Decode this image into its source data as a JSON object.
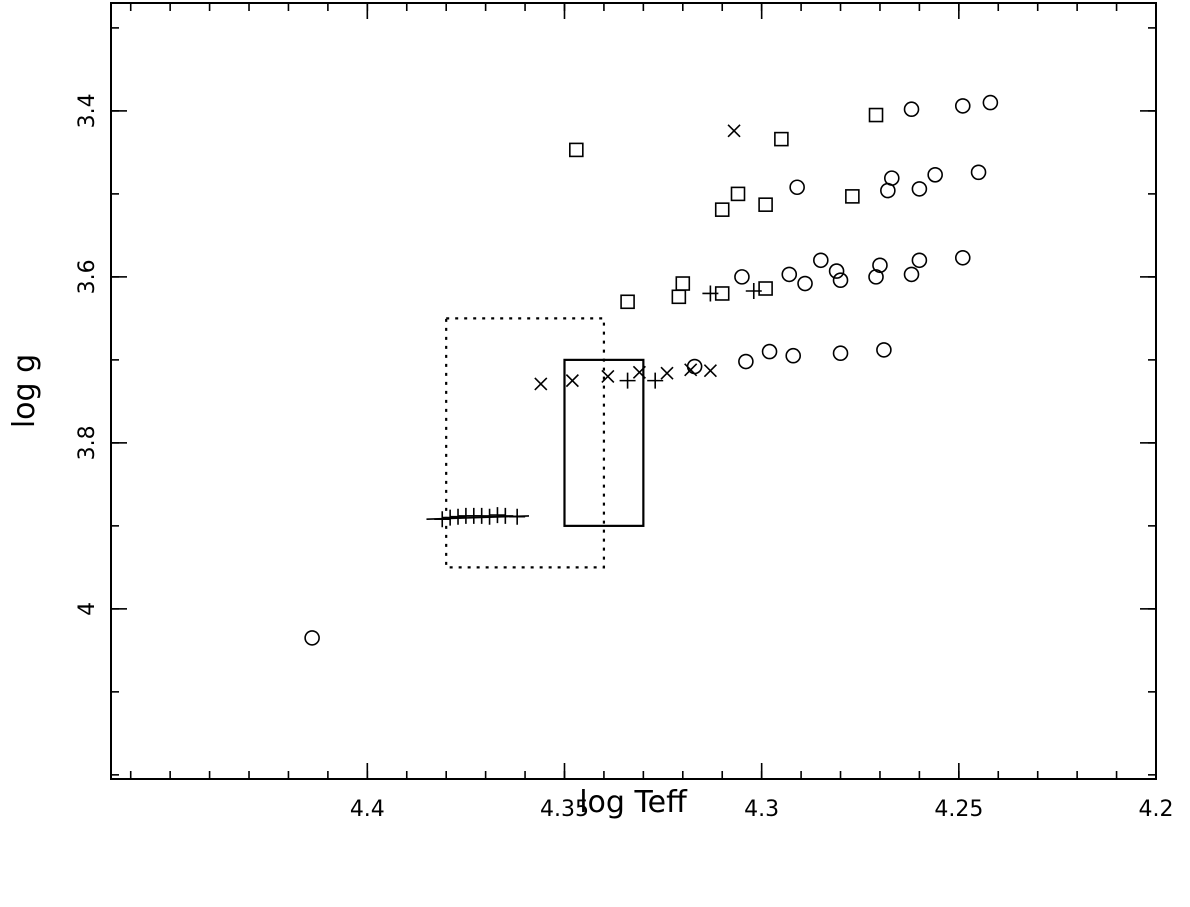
{
  "chart_data": {
    "type": "scatter",
    "xlabel": "log Teff",
    "ylabel": "log g",
    "xlim": [
      4.465,
      4.2
    ],
    "ylim": [
      4.205,
      3.27
    ],
    "x_reversed": true,
    "y_reversed": true,
    "grid": false,
    "x_ticks": [
      4.4,
      4.35,
      4.3,
      4.25,
      4.2
    ],
    "x_tick_labels": [
      "4.4",
      "4.35",
      "4.3",
      "4.25",
      "4.2"
    ],
    "x_minor_step": 0.01,
    "y_ticks": [
      3.4,
      3.6,
      3.8,
      4.0
    ],
    "y_tick_labels": [
      "3.4",
      "3.6",
      "3.8",
      "4"
    ],
    "y_minor_step": 0.1,
    "series": [
      {
        "marker": "circle",
        "points": [
          [
            4.414,
            4.035
          ],
          [
            4.317,
            3.708
          ],
          [
            4.305,
            3.6
          ],
          [
            4.304,
            3.702
          ],
          [
            4.298,
            3.69
          ],
          [
            4.293,
            3.597
          ],
          [
            4.292,
            3.695
          ],
          [
            4.291,
            3.492
          ],
          [
            4.289,
            3.608
          ],
          [
            4.285,
            3.58
          ],
          [
            4.281,
            3.593
          ],
          [
            4.28,
            3.604
          ],
          [
            4.28,
            3.692
          ],
          [
            4.271,
            3.6
          ],
          [
            4.27,
            3.586
          ],
          [
            4.269,
            3.688
          ],
          [
            4.268,
            3.496
          ],
          [
            4.267,
            3.481
          ],
          [
            4.262,
            3.398
          ],
          [
            4.262,
            3.597
          ],
          [
            4.26,
            3.58
          ],
          [
            4.26,
            3.494
          ],
          [
            4.256,
            3.477
          ],
          [
            4.249,
            3.577
          ],
          [
            4.249,
            3.394
          ],
          [
            4.245,
            3.474
          ],
          [
            4.242,
            3.39
          ]
        ]
      },
      {
        "marker": "square",
        "points": [
          [
            4.347,
            3.447
          ],
          [
            4.334,
            3.63
          ],
          [
            4.321,
            3.624
          ],
          [
            4.32,
            3.608
          ],
          [
            4.31,
            3.62
          ],
          [
            4.31,
            3.519
          ],
          [
            4.306,
            3.5
          ],
          [
            4.299,
            3.614
          ],
          [
            4.299,
            3.513
          ],
          [
            4.295,
            3.434
          ],
          [
            4.277,
            3.503
          ],
          [
            4.271,
            3.405
          ]
        ]
      },
      {
        "marker": "cross",
        "points": [
          [
            4.356,
            3.729
          ],
          [
            4.348,
            3.725
          ],
          [
            4.339,
            3.72
          ],
          [
            4.331,
            3.715
          ],
          [
            4.324,
            3.716
          ],
          [
            4.318,
            3.712
          ],
          [
            4.313,
            3.713
          ],
          [
            4.307,
            3.424
          ]
        ]
      },
      {
        "marker": "plus",
        "points": [
          [
            4.381,
            3.892
          ],
          [
            4.379,
            3.89
          ],
          [
            4.377,
            3.889
          ],
          [
            4.375,
            3.888
          ],
          [
            4.373,
            3.888
          ],
          [
            4.371,
            3.888
          ],
          [
            4.369,
            3.889
          ],
          [
            4.367,
            3.887
          ],
          [
            4.365,
            3.888
          ],
          [
            4.362,
            3.889
          ],
          [
            4.334,
            3.725
          ],
          [
            4.327,
            3.725
          ],
          [
            4.313,
            3.62
          ],
          [
            4.302,
            3.617
          ]
        ]
      }
    ],
    "lines": [
      {
        "style": "solid",
        "points": [
          [
            4.385,
            3.892
          ],
          [
            4.359,
            3.888
          ]
        ]
      }
    ],
    "boxes": [
      {
        "style": "solid",
        "x": [
          4.35,
          4.33
        ],
        "y": [
          3.7,
          3.9
        ]
      },
      {
        "style": "dotted",
        "x": [
          4.38,
          4.34
        ],
        "y": [
          3.65,
          3.95
        ]
      }
    ]
  }
}
